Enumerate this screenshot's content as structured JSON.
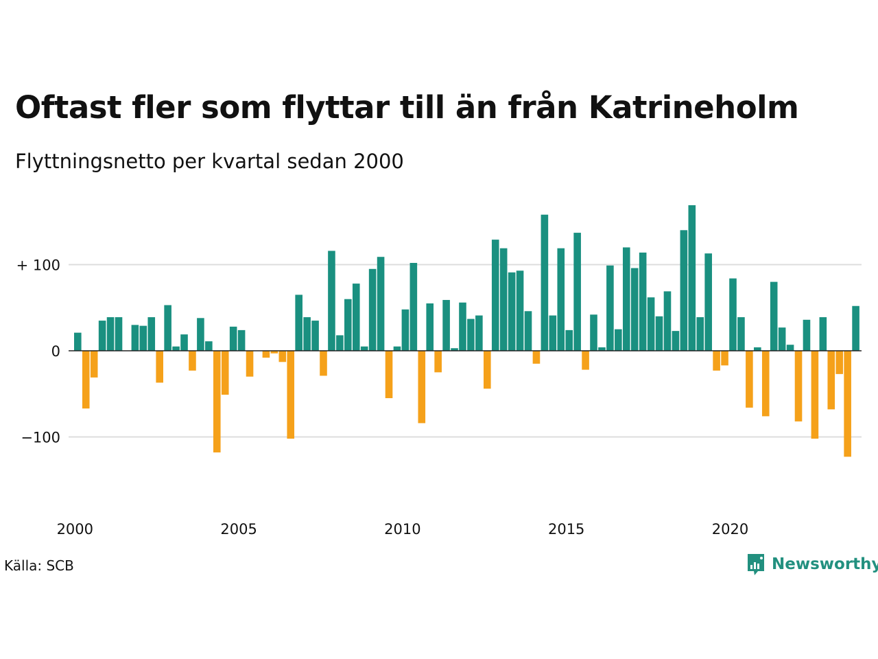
{
  "header": {
    "title": "Oftast fler som flyttar till än från Katrineholm",
    "subtitle": "Flyttningsnetto per kvartal sedan 2000"
  },
  "footer": {
    "source": "Källa: SCB",
    "brand": "Newsworthy"
  },
  "colors": {
    "positive": "#1a9080",
    "negative": "#f5a11a",
    "gridline": "#dddddd",
    "zero_line": "#222222",
    "text": "#111111",
    "brand": "#22907f"
  },
  "chart_data": {
    "type": "bar",
    "title": "Oftast fler som flyttar till än från Katrineholm",
    "subtitle": "Flyttningsnetto per kvartal sedan 2000",
    "ylim": [
      -150,
      175
    ],
    "y_ticks": [
      {
        "value": 100,
        "label": "+ 100"
      },
      {
        "value": 0,
        "label": "0"
      },
      {
        "value": -100,
        "label": "−100"
      }
    ],
    "x_ticks": [
      "2000",
      "2005",
      "2010",
      "2015",
      "2020"
    ],
    "grid": true,
    "start": "2000 Q1",
    "categories": [
      "2000 Q1",
      "2000 Q2",
      "2000 Q3",
      "2000 Q4",
      "2001 Q1",
      "2001 Q2",
      "2001 Q3",
      "2001 Q4",
      "2002 Q1",
      "2002 Q2",
      "2002 Q3",
      "2002 Q4",
      "2003 Q1",
      "2003 Q2",
      "2003 Q3",
      "2003 Q4",
      "2004 Q1",
      "2004 Q2",
      "2004 Q3",
      "2004 Q4",
      "2005 Q1",
      "2005 Q2",
      "2005 Q3",
      "2005 Q4",
      "2006 Q1",
      "2006 Q2",
      "2006 Q3",
      "2006 Q4",
      "2007 Q1",
      "2007 Q2",
      "2007 Q3",
      "2007 Q4",
      "2008 Q1",
      "2008 Q2",
      "2008 Q3",
      "2008 Q4",
      "2009 Q1",
      "2009 Q2",
      "2009 Q3",
      "2009 Q4",
      "2010 Q1",
      "2010 Q2",
      "2010 Q3",
      "2010 Q4",
      "2011 Q1",
      "2011 Q2",
      "2011 Q3",
      "2011 Q4",
      "2012 Q1",
      "2012 Q2",
      "2012 Q3",
      "2012 Q4",
      "2013 Q1",
      "2013 Q2",
      "2013 Q3",
      "2013 Q4",
      "2014 Q1",
      "2014 Q2",
      "2014 Q3",
      "2014 Q4",
      "2015 Q1",
      "2015 Q2",
      "2015 Q3",
      "2015 Q4",
      "2016 Q1",
      "2016 Q2",
      "2016 Q3",
      "2016 Q4",
      "2017 Q1",
      "2017 Q2",
      "2017 Q3",
      "2017 Q4",
      "2018 Q1",
      "2018 Q2",
      "2018 Q3",
      "2018 Q4",
      "2019 Q1",
      "2019 Q2",
      "2019 Q3",
      "2019 Q4",
      "2020 Q1",
      "2020 Q2",
      "2020 Q3",
      "2020 Q4",
      "2021 Q1",
      "2021 Q2",
      "2021 Q3",
      "2021 Q4",
      "2022 Q1",
      "2022 Q2",
      "2022 Q3",
      "2022 Q4",
      "2023 Q1",
      "2023 Q2",
      "2023 Q3",
      "2023 Q4",
      "2024 Q1"
    ],
    "values": [
      21,
      -67,
      -31,
      35,
      39,
      39,
      0,
      30,
      29,
      39,
      -37,
      53,
      5,
      19,
      -23,
      38,
      11,
      -118,
      -51,
      28,
      24,
      -30,
      0,
      -8,
      -3,
      -13,
      -102,
      65,
      39,
      35,
      -29,
      116,
      18,
      60,
      78,
      5,
      95,
      109,
      -55,
      5,
      48,
      102,
      -84,
      55,
      -25,
      59,
      3,
      56,
      37,
      41,
      -44,
      129,
      119,
      91,
      93,
      46,
      -15,
      158,
      41,
      119,
      24,
      137,
      -22,
      42,
      4,
      99,
      25,
      120,
      96,
      114,
      62,
      40,
      69,
      23,
      140,
      169,
      39,
      113,
      -23,
      -17,
      84,
      39,
      -66,
      4,
      -76,
      80,
      27,
      7,
      -82,
      36,
      -102,
      39,
      -68,
      -27,
      -123,
      52,
      0
    ]
  }
}
